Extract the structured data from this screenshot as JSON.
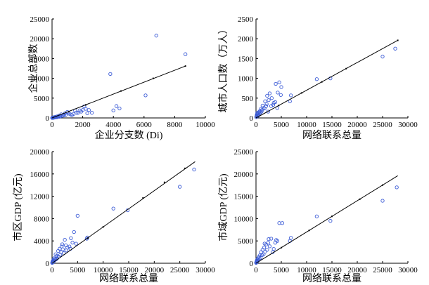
{
  "colors": {
    "marker": "#3b5bd6",
    "line": "#000000",
    "axis": "#000000"
  },
  "chart_data": [
    {
      "type": "scatter",
      "xlabel": "企业分支数 (Di)",
      "ylabel": "企业总部数",
      "xlim": [
        0,
        10000
      ],
      "ylim": [
        0,
        25000
      ],
      "xticks": [
        "0",
        "2000",
        "4000",
        "6000",
        "8000",
        "10000"
      ],
      "yticks": [
        "0",
        "5000",
        "10000",
        "15000",
        "20000",
        "25000"
      ],
      "points": [
        [
          6800,
          20800
        ],
        [
          8700,
          16100
        ],
        [
          3800,
          11100
        ],
        [
          4200,
          3000
        ],
        [
          4400,
          2400
        ],
        [
          4000,
          1900
        ],
        [
          6100,
          5700
        ],
        [
          2100,
          2900
        ],
        [
          2200,
          2300
        ],
        [
          2300,
          1200
        ],
        [
          1800,
          1900
        ],
        [
          2000,
          2000
        ],
        [
          1500,
          1900
        ],
        [
          1600,
          1300
        ],
        [
          2600,
          1300
        ],
        [
          1100,
          1100
        ],
        [
          1200,
          900
        ],
        [
          900,
          800
        ],
        [
          1000,
          1500
        ],
        [
          800,
          700
        ],
        [
          700,
          600
        ],
        [
          600,
          900
        ],
        [
          550,
          450
        ],
        [
          500,
          300
        ],
        [
          450,
          600
        ],
        [
          400,
          400
        ],
        [
          350,
          200
        ],
        [
          300,
          350
        ],
        [
          250,
          150
        ],
        [
          200,
          250
        ],
        [
          150,
          100
        ],
        [
          120,
          80
        ],
        [
          100,
          150
        ],
        [
          80,
          50
        ],
        [
          60,
          100
        ],
        [
          50,
          40
        ],
        [
          40,
          30
        ],
        [
          30,
          60
        ],
        [
          20,
          20
        ],
        [
          10,
          10
        ],
        [
          1300,
          700
        ],
        [
          1400,
          1000
        ],
        [
          1700,
          1300
        ],
        [
          1900,
          1600
        ],
        [
          2400,
          2000
        ],
        [
          850,
          1200
        ],
        [
          650,
          500
        ]
      ],
      "fit": [
        [
          0,
          0
        ],
        [
          8700,
          13100
        ]
      ],
      "fit_markers": [
        [
          1100,
          1600
        ],
        [
          2200,
          3300
        ],
        [
          4500,
          6800
        ],
        [
          6600,
          10000
        ],
        [
          8700,
          13100
        ]
      ]
    },
    {
      "type": "scatter",
      "xlabel": "网络联系总量",
      "ylabel": "城市人口数（万人）",
      "xlim": [
        0,
        30000
      ],
      "ylim": [
        0,
        2500
      ],
      "xticks": [
        "0",
        "5000",
        "10000",
        "15000",
        "20000",
        "25000",
        "30000"
      ],
      "yticks": [
        "0",
        "500",
        "1000",
        "1500",
        "2000",
        "2500"
      ],
      "points": [
        [
          27500,
          1750
        ],
        [
          25000,
          1550
        ],
        [
          14700,
          1000
        ],
        [
          12000,
          980
        ],
        [
          6900,
          570
        ],
        [
          6700,
          420
        ],
        [
          5000,
          780
        ],
        [
          4900,
          580
        ],
        [
          4600,
          900
        ],
        [
          4300,
          640
        ],
        [
          3900,
          860
        ],
        [
          3800,
          400
        ],
        [
          3500,
          380
        ],
        [
          3400,
          330
        ],
        [
          3000,
          300
        ],
        [
          2700,
          620
        ],
        [
          2500,
          450
        ],
        [
          2200,
          560
        ],
        [
          2100,
          350
        ],
        [
          2000,
          300
        ],
        [
          1800,
          420
        ],
        [
          1700,
          240
        ],
        [
          1500,
          250
        ],
        [
          1300,
          310
        ],
        [
          1200,
          200
        ],
        [
          1100,
          160
        ],
        [
          1000,
          230
        ],
        [
          900,
          140
        ],
        [
          800,
          180
        ],
        [
          700,
          120
        ],
        [
          600,
          150
        ],
        [
          500,
          80
        ],
        [
          400,
          110
        ],
        [
          300,
          60
        ],
        [
          200,
          90
        ],
        [
          100,
          40
        ],
        [
          50,
          20
        ],
        [
          150,
          70
        ],
        [
          250,
          130
        ],
        [
          350,
          50
        ],
        [
          4200,
          250
        ],
        [
          3100,
          500
        ],
        [
          2400,
          160
        ]
      ],
      "fit": [
        [
          0,
          0
        ],
        [
          28000,
          1960
        ]
      ],
      "fit_markers": [
        [
          4500,
          315
        ],
        [
          9000,
          630
        ],
        [
          13000,
          910
        ],
        [
          17800,
          1245
        ],
        [
          28000,
          1960
        ]
      ]
    },
    {
      "type": "scatter",
      "xlabel": "网络联系总量",
      "ylabel": "市区GDP (亿元)",
      "xlim": [
        0,
        30000
      ],
      "ylim": [
        0,
        20000
      ],
      "xticks": [
        "0",
        "5000",
        "10000",
        "15000",
        "20000",
        "25000",
        "30000"
      ],
      "yticks": [
        "0",
        "4000",
        "8000",
        "12000",
        "16000",
        "20000"
      ],
      "points": [
        [
          27800,
          16800
        ],
        [
          25000,
          13700
        ],
        [
          14800,
          9500
        ],
        [
          12000,
          9800
        ],
        [
          6900,
          4600
        ],
        [
          6800,
          4400
        ],
        [
          5000,
          8500
        ],
        [
          4700,
          3500
        ],
        [
          4300,
          5600
        ],
        [
          4000,
          3700
        ],
        [
          3700,
          4500
        ],
        [
          3400,
          3000
        ],
        [
          3000,
          2800
        ],
        [
          2700,
          3200
        ],
        [
          2500,
          4200
        ],
        [
          2300,
          1800
        ],
        [
          2100,
          2500
        ],
        [
          2000,
          3400
        ],
        [
          1800,
          2000
        ],
        [
          1600,
          1500
        ],
        [
          1500,
          2600
        ],
        [
          1300,
          1200
        ],
        [
          1200,
          2200
        ],
        [
          1000,
          900
        ],
        [
          900,
          1300
        ],
        [
          800,
          700
        ],
        [
          700,
          1600
        ],
        [
          600,
          800
        ],
        [
          500,
          500
        ],
        [
          400,
          900
        ],
        [
          300,
          300
        ],
        [
          250,
          600
        ],
        [
          200,
          400
        ],
        [
          150,
          200
        ],
        [
          100,
          350
        ],
        [
          80,
          150
        ],
        [
          50,
          100
        ],
        [
          30,
          60
        ],
        [
          3600,
          2600
        ],
        [
          2800,
          2300
        ],
        [
          1900,
          3000
        ]
      ],
      "fit": [
        [
          0,
          0
        ],
        [
          28000,
          18200
        ]
      ],
      "fit_markers": [
        [
          7000,
          4500
        ],
        [
          10000,
          6500
        ],
        [
          17800,
          11700
        ],
        [
          22000,
          14500
        ],
        [
          26000,
          17000
        ]
      ]
    },
    {
      "type": "scatter",
      "xlabel": "网络联系总量",
      "ylabel": "市域GDP (亿元)",
      "xlim": [
        0,
        30000
      ],
      "ylim": [
        0,
        25000
      ],
      "xticks": [
        "0",
        "5000",
        "10000",
        "15000",
        "20000",
        "25000",
        "30000"
      ],
      "yticks": [
        "0",
        "5000",
        "10000",
        "15000",
        "20000",
        "25000"
      ],
      "points": [
        [
          27800,
          17000
        ],
        [
          25000,
          14000
        ],
        [
          14700,
          9500
        ],
        [
          12000,
          10500
        ],
        [
          6900,
          5700
        ],
        [
          6700,
          5000
        ],
        [
          5200,
          9000
        ],
        [
          4600,
          9000
        ],
        [
          4200,
          5000
        ],
        [
          4000,
          5200
        ],
        [
          3800,
          4600
        ],
        [
          3500,
          3200
        ],
        [
          3000,
          5500
        ],
        [
          2700,
          3800
        ],
        [
          2500,
          5400
        ],
        [
          2200,
          3000
        ],
        [
          2000,
          4200
        ],
        [
          1800,
          2600
        ],
        [
          1600,
          3500
        ],
        [
          1500,
          2000
        ],
        [
          1300,
          3000
        ],
        [
          1200,
          1800
        ],
        [
          1000,
          2500
        ],
        [
          900,
          1200
        ],
        [
          800,
          1800
        ],
        [
          700,
          900
        ],
        [
          600,
          1500
        ],
        [
          500,
          700
        ],
        [
          400,
          1100
        ],
        [
          300,
          500
        ],
        [
          250,
          800
        ],
        [
          200,
          400
        ],
        [
          150,
          600
        ],
        [
          100,
          300
        ],
        [
          80,
          200
        ],
        [
          50,
          150
        ],
        [
          30,
          80
        ],
        [
          3300,
          2500
        ],
        [
          2400,
          4600
        ],
        [
          1700,
          4400
        ]
      ],
      "fit": [
        [
          0,
          0
        ],
        [
          28000,
          19600
        ]
      ],
      "fit_markers": [
        [
          5000,
          3500
        ],
        [
          10500,
          7350
        ],
        [
          15000,
          10500
        ],
        [
          20500,
          14350
        ],
        [
          25000,
          17500
        ]
      ]
    }
  ]
}
